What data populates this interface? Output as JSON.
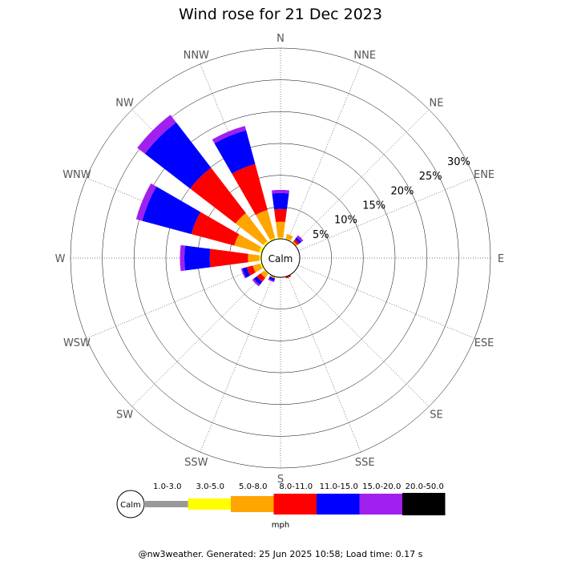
{
  "chart_data": {
    "type": "wind-rose",
    "title": "Wind rose for 21 Dec 2023",
    "directions": [
      "N",
      "NNE",
      "NE",
      "ENE",
      "E",
      "ESE",
      "SE",
      "SSE",
      "S",
      "SSW",
      "SW",
      "WSW",
      "W",
      "WNW",
      "NW",
      "NNW"
    ],
    "radial_ticks": [
      5,
      10,
      15,
      20,
      25,
      30
    ],
    "radial_tick_labels": [
      "5%",
      "10%",
      "15%",
      "20%",
      "25%",
      "30%"
    ],
    "rmax": 30,
    "calm_label": "Calm",
    "unit": "mph",
    "bins": [
      {
        "label": "1.0-3.0",
        "color": "#999999"
      },
      {
        "label": "3.0-5.0",
        "color": "#ffff00"
      },
      {
        "label": "5.0-8.0",
        "color": "#ffa500"
      },
      {
        "label": "8.0-11.0",
        "color": "#ff0000"
      },
      {
        "label": "11.0-15.0",
        "color": "#0000ff"
      },
      {
        "label": "15.0-20.0",
        "color": "#a020f0"
      },
      {
        "label": "20.0-50.0",
        "color": "#000000"
      }
    ],
    "series": [
      {
        "direction": "N",
        "values": [
          0,
          0.2,
          2.5,
          2.0,
          2.5,
          0.5,
          0
        ]
      },
      {
        "direction": "NNE",
        "values": [
          0,
          0.2,
          0.7,
          0,
          0,
          0,
          0
        ]
      },
      {
        "direction": "NE",
        "values": [
          0,
          0,
          0.3,
          0.4,
          0.4,
          0.4,
          0
        ]
      },
      {
        "direction": "ENE",
        "values": [
          0,
          0,
          0,
          0,
          0,
          0,
          0
        ]
      },
      {
        "direction": "E",
        "values": [
          0,
          0,
          0,
          0,
          0,
          0,
          0
        ]
      },
      {
        "direction": "ESE",
        "values": [
          0,
          0,
          0,
          0,
          0,
          0,
          0
        ]
      },
      {
        "direction": "SE",
        "values": [
          0,
          0,
          0,
          0,
          0,
          0,
          0
        ]
      },
      {
        "direction": "SSE",
        "values": [
          0,
          0,
          0,
          0.3,
          0,
          0,
          0
        ]
      },
      {
        "direction": "S",
        "values": [
          0,
          0,
          0,
          0,
          0,
          0,
          0
        ]
      },
      {
        "direction": "SSW",
        "values": [
          0,
          0,
          0.3,
          0,
          0.4,
          0.2,
          0
        ]
      },
      {
        "direction": "SW",
        "values": [
          0,
          0.2,
          0.7,
          0.8,
          0.6,
          0.3,
          0
        ]
      },
      {
        "direction": "WSW",
        "values": [
          0,
          0.3,
          1.2,
          1.0,
          0.7,
          0.2,
          0
        ]
      },
      {
        "direction": "W",
        "values": [
          0,
          0.3,
          1.8,
          6.0,
          4.0,
          0.7,
          0
        ]
      },
      {
        "direction": "WNW",
        "values": [
          0,
          0.5,
          4.0,
          7.0,
          8.0,
          1.0,
          0
        ]
      },
      {
        "direction": "NW",
        "values": [
          0,
          0.4,
          5.5,
          9.0,
          9.0,
          1.5,
          0
        ]
      },
      {
        "direction": "NNW",
        "values": [
          0,
          0.3,
          4.5,
          7.5,
          5.5,
          0.7,
          0
        ]
      }
    ]
  },
  "footer": "@nw3weather. Generated: 25 Jun 2025 10:58; Load time: 0.17 s"
}
